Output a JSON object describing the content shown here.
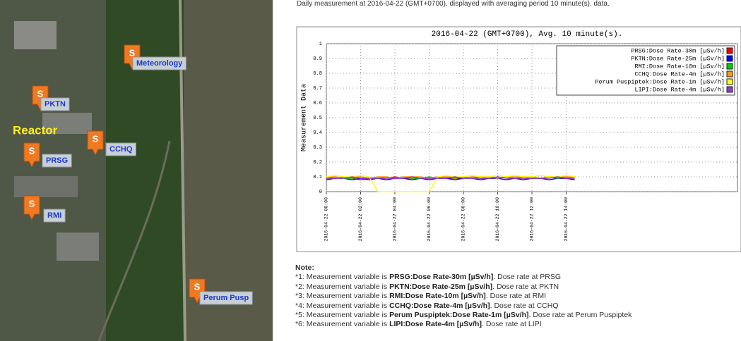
{
  "header": {
    "text": "Daily measurement at 2016-04-22 (GMT+0700), displayed with averaging period 10 minute(s). data."
  },
  "map": {
    "labels": [
      "Meteorology",
      "PKTN",
      "Reactor",
      "PRSG",
      "CCHQ",
      "RMI",
      "Perum Pusp"
    ]
  },
  "chart_data": {
    "type": "line",
    "title": "2016-04-22 (GMT+0700), Avg. 10 minute(s).",
    "y_label": "Measurement Data",
    "x": [
      0,
      0.5,
      1,
      1.5,
      2,
      2.5,
      3,
      3.5,
      4,
      4.5,
      5,
      5.5,
      6,
      6.5,
      7,
      7.5,
      8,
      8.5,
      9,
      9.5,
      10,
      10.5,
      11,
      11.5,
      12,
      12.5,
      13,
      13.5,
      14,
      14.5
    ],
    "xlim": [
      0,
      24
    ],
    "xticks": [
      {
        "value": 0,
        "label": "2016-04-22 00:00"
      },
      {
        "value": 2,
        "label": "2016-04-22 02:00"
      },
      {
        "value": 4,
        "label": "2016-04-22 04:00"
      },
      {
        "value": 6,
        "label": "2016-04-22 06:00"
      },
      {
        "value": 8,
        "label": "2016-04-22 08:00"
      },
      {
        "value": 10,
        "label": "2016-04-22 10:00"
      },
      {
        "value": 12,
        "label": "2016-04-22 12:00"
      },
      {
        "value": 14,
        "label": "2016-04-22 14:00"
      }
    ],
    "ylim": [
      0,
      1
    ],
    "yticks": [
      0,
      0.1,
      0.2,
      0.3,
      0.4,
      0.5,
      0.6,
      0.7,
      0.8,
      0.9,
      1
    ],
    "grid": true,
    "legend": "top-right",
    "series": [
      {
        "name": "PRSG:Dose Rate-30m [µSv/h]",
        "color": "#ff0000",
        "values": [
          0.09,
          0.09,
          0.1,
          0.09,
          0.08,
          0.09,
          0.09,
          0.09,
          0.1,
          0.09,
          0.09,
          0.09,
          0.09,
          0.1,
          0.09,
          0.09,
          0.09,
          0.1,
          0.09,
          0.09,
          0.09,
          0.1,
          0.09,
          0.09,
          0.09,
          0.09,
          0.1,
          0.09,
          0.09,
          0.09
        ]
      },
      {
        "name": "PKTN:Dose Rate-25m [µSv/h]",
        "color": "#0000ff",
        "values": [
          0.08,
          0.09,
          0.09,
          0.08,
          0.09,
          0.08,
          0.09,
          0.08,
          0.09,
          0.09,
          0.08,
          0.09,
          0.08,
          0.09,
          0.09,
          0.08,
          0.09,
          0.09,
          0.08,
          0.09,
          0.09,
          0.08,
          0.09,
          0.08,
          0.09,
          0.09,
          0.08,
          0.09,
          0.09,
          0.08
        ]
      },
      {
        "name": "RMI:Dose Rate-10m [µSv/h]",
        "color": "#00cc00",
        "values": [
          0.09,
          0.1,
          0.09,
          0.09,
          0.1,
          0.09,
          0.09,
          0.1,
          0.09,
          0.1,
          0.09,
          0.09,
          0.1,
          0.09,
          0.1,
          0.09,
          0.1,
          0.09,
          0.09,
          0.1,
          0.09,
          0.1,
          0.09,
          0.1,
          0.09,
          0.09,
          0.1,
          0.09,
          0.1,
          0.09
        ]
      },
      {
        "name": "CCHQ:Dose Rate-4m [µSv/h]",
        "color": "#ff9900",
        "values": [
          0.1,
          0.1,
          0.09,
          0.1,
          0.1,
          0.09,
          0.1,
          0.1,
          0.09,
          0.1,
          0.1,
          0.1,
          0.09,
          0.1,
          0.1,
          0.1,
          0.09,
          0.1,
          0.1,
          0.1,
          0.09,
          0.1,
          0.1,
          0.1,
          0.1,
          0.09,
          0.1,
          0.1,
          0.1,
          0.1
        ]
      },
      {
        "name": "Perum Puspiptek:Dose Rate-1m [µSv/h]",
        "color": "#ffff00",
        "values": [
          0.1,
          0.11,
          0.1,
          0.1,
          0.11,
          0.1,
          0,
          0,
          0,
          0,
          0,
          0,
          0,
          0.1,
          0.11,
          0.1,
          0.1,
          0.11,
          0.1,
          0.1,
          0.11,
          0.1,
          0.11,
          0.1,
          0.1,
          0.11,
          0.1,
          0.1,
          0.11,
          0.1
        ]
      },
      {
        "name": "LIPI:Dose Rate-4m [µSv/h]",
        "color": "#9933cc",
        "values": [
          0.09,
          0.09,
          0.09,
          0.1,
          0.09,
          0.09,
          0.09,
          0.09,
          0.09,
          0.09,
          0.1,
          0.09,
          0.09,
          0.09,
          0.09,
          0.1,
          0.09,
          0.09,
          0.09,
          0.09,
          0.1,
          0.09,
          0.09,
          0.09,
          0.09,
          0.09,
          0.09,
          0.1,
          0.09,
          0.09
        ]
      }
    ]
  },
  "notes": {
    "title": "Note:",
    "items": [
      {
        "prefix": "*1: Measurement variable is ",
        "variable": "PRSG:Dose Rate-30m [µSv/h]",
        "suffix": ". Dose rate at PRSG"
      },
      {
        "prefix": "*2: Measurement variable is ",
        "variable": "PKTN:Dose Rate-25m [µSv/h]",
        "suffix": ". Dose rate at PKTN"
      },
      {
        "prefix": "*3: Measurement variable is ",
        "variable": "RMI:Dose Rate-10m [µSv/h]",
        "suffix": ". Dose rate at RMI"
      },
      {
        "prefix": "*4: Measurement variable is ",
        "variable": "CCHQ:Dose Rate-4m [µSv/h]",
        "suffix": ". Dose rate at CCHQ"
      },
      {
        "prefix": "*5: Measurement variable is ",
        "variable": "Perum Puspiptek:Dose Rate-1m [µSv/h]",
        "suffix": ". Dose rate at Perum Puspiptek"
      },
      {
        "prefix": "*6: Measurement variable is ",
        "variable": "LIPI:Dose Rate-4m [µSv/h]",
        "suffix": ". Dose rate at LIPI"
      }
    ]
  }
}
